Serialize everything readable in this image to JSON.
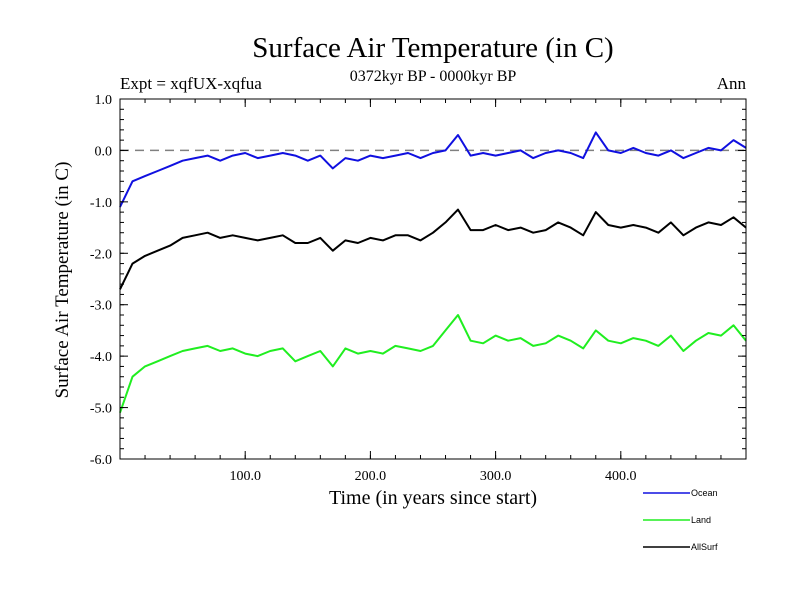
{
  "chart_data": {
    "type": "line",
    "title": "Surface Air Temperature (in C)",
    "subtitle": "0372kyr BP - 0000kyr BP",
    "experiment_label": "Expt = xqfUX-xqfua",
    "season_label": "Ann",
    "xlabel": "Time (in years since start)",
    "ylabel": "Surface Air Temperature (in C)",
    "xlim": [
      0,
      500
    ],
    "ylim": [
      -6.0,
      1.0
    ],
    "x_ticks": [
      100,
      200,
      300,
      400
    ],
    "x_tick_labels": [
      "100.0",
      "200.0",
      "300.0",
      "400.0"
    ],
    "y_ticks": [
      1.0,
      0.0,
      -1.0,
      -2.0,
      -3.0,
      -4.0,
      -5.0,
      -6.0
    ],
    "y_tick_labels": [
      "1.0",
      "0.0",
      "-1.0",
      "-2.0",
      "-3.0",
      "-4.0",
      "-5.0",
      "-6.0"
    ],
    "reference_line": {
      "y": 0.0,
      "style": "dashed",
      "color": "#808080"
    },
    "legend_position": "bottom-right",
    "series": [
      {
        "name": "Ocean",
        "color": "#1010e0",
        "x_step": 10,
        "values": [
          -1.1,
          -0.6,
          -0.5,
          -0.4,
          -0.3,
          -0.2,
          -0.15,
          -0.1,
          -0.2,
          -0.1,
          -0.05,
          -0.15,
          -0.1,
          -0.05,
          -0.1,
          -0.2,
          -0.1,
          -0.35,
          -0.15,
          -0.2,
          -0.1,
          -0.15,
          -0.1,
          -0.05,
          -0.15,
          -0.05,
          0.0,
          0.3,
          -0.1,
          -0.05,
          -0.1,
          -0.05,
          0.0,
          -0.15,
          -0.05,
          0.0,
          -0.05,
          -0.15,
          0.35,
          0.0,
          -0.05,
          0.05,
          -0.05,
          -0.1,
          0.0,
          -0.15,
          -0.05,
          0.05,
          0.0,
          0.2,
          0.05
        ]
      },
      {
        "name": "Land",
        "color": "#20ee20",
        "x_step": 10,
        "values": [
          -5.1,
          -4.4,
          -4.2,
          -4.1,
          -4.0,
          -3.9,
          -3.85,
          -3.8,
          -3.9,
          -3.85,
          -3.95,
          -4.0,
          -3.9,
          -3.85,
          -4.1,
          -4.0,
          -3.9,
          -4.2,
          -3.85,
          -3.95,
          -3.9,
          -3.95,
          -3.8,
          -3.85,
          -3.9,
          -3.8,
          -3.5,
          -3.2,
          -3.7,
          -3.75,
          -3.6,
          -3.7,
          -3.65,
          -3.8,
          -3.75,
          -3.6,
          -3.7,
          -3.85,
          -3.5,
          -3.7,
          -3.75,
          -3.65,
          -3.7,
          -3.8,
          -3.6,
          -3.9,
          -3.7,
          -3.55,
          -3.6,
          -3.4,
          -3.7
        ]
      },
      {
        "name": "AllSurf",
        "color": "#000000",
        "x_step": 10,
        "values": [
          -2.7,
          -2.2,
          -2.05,
          -1.95,
          -1.85,
          -1.7,
          -1.65,
          -1.6,
          -1.7,
          -1.65,
          -1.7,
          -1.75,
          -1.7,
          -1.65,
          -1.8,
          -1.8,
          -1.7,
          -1.95,
          -1.75,
          -1.8,
          -1.7,
          -1.75,
          -1.65,
          -1.65,
          -1.75,
          -1.6,
          -1.4,
          -1.15,
          -1.55,
          -1.55,
          -1.45,
          -1.55,
          -1.5,
          -1.6,
          -1.55,
          -1.4,
          -1.5,
          -1.65,
          -1.2,
          -1.45,
          -1.5,
          -1.45,
          -1.5,
          -1.6,
          -1.4,
          -1.65,
          -1.5,
          -1.4,
          -1.45,
          -1.3,
          -1.5
        ]
      }
    ]
  }
}
